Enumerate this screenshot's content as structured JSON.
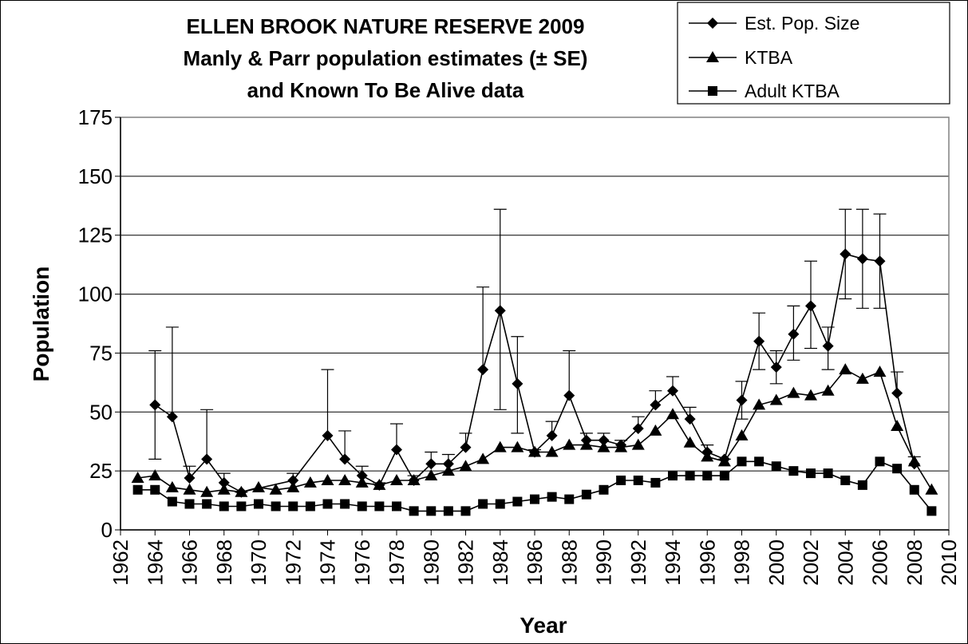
{
  "chart_data": {
    "type": "line",
    "title_lines": [
      "ELLEN BROOK NATURE RESERVE 2009",
      "Manly & Parr population estimates (± SE)",
      "and Known To Be Alive data"
    ],
    "xlabel": "Year",
    "ylabel": "Population",
    "xlim": [
      1962,
      2010
    ],
    "ylim": [
      0,
      175
    ],
    "x_ticks": [
      "1962",
      "1964",
      "1966",
      "1968",
      "1970",
      "1972",
      "1974",
      "1976",
      "1978",
      "1980",
      "1982",
      "1984",
      "1986",
      "1988",
      "1990",
      "1992",
      "1994",
      "1996",
      "1998",
      "2000",
      "2002",
      "2004",
      "2006",
      "2008",
      "2010"
    ],
    "y_ticks": [
      "0",
      "25",
      "50",
      "75",
      "100",
      "125",
      "150",
      "175"
    ],
    "grid": "horizontal",
    "legend_position": "top-right",
    "series": [
      {
        "name": "Est. Pop. Size",
        "marker": "diamond",
        "x": [
          1964,
          1965,
          1966,
          1967,
          1968,
          1969,
          1972,
          1974,
          1975,
          1976,
          1977,
          1978,
          1979,
          1980,
          1981,
          1982,
          1983,
          1984,
          1985,
          1986,
          1987,
          1988,
          1989,
          1990,
          1991,
          1992,
          1993,
          1994,
          1995,
          1996,
          1997,
          1998,
          1999,
          2000,
          2001,
          2002,
          2003,
          2004,
          2005,
          2006,
          2007,
          2008
        ],
        "y": [
          53,
          48,
          22,
          30,
          20,
          16,
          21,
          40,
          30,
          23,
          19,
          34,
          21,
          28,
          28,
          35,
          68,
          93,
          62,
          33,
          40,
          57,
          38,
          38,
          36,
          43,
          53,
          59,
          47,
          33,
          30,
          55,
          80,
          69,
          83,
          95,
          78,
          117,
          115,
          114,
          58,
          28
        ],
        "error_upper": [
          76,
          86,
          27,
          51,
          24,
          16,
          24,
          68,
          42,
          27,
          20,
          45,
          23,
          33,
          32,
          41,
          103,
          136,
          82,
          34,
          46,
          76,
          41,
          41,
          38,
          48,
          59,
          65,
          52,
          36,
          30,
          63,
          92,
          76,
          95,
          114,
          86,
          136,
          136,
          134,
          67,
          31
        ],
        "error_lower": [
          30,
          null,
          null,
          null,
          null,
          null,
          null,
          null,
          null,
          null,
          null,
          null,
          null,
          null,
          null,
          null,
          null,
          51,
          41,
          null,
          null,
          null,
          null,
          null,
          null,
          null,
          null,
          null,
          null,
          null,
          null,
          47,
          68,
          62,
          72,
          77,
          68,
          98,
          94,
          94,
          null,
          null
        ]
      },
      {
        "name": "KTBA",
        "marker": "triangle",
        "x": [
          1963,
          1964,
          1965,
          1966,
          1967,
          1968,
          1969,
          1970,
          1971,
          1972,
          1973,
          1974,
          1975,
          1976,
          1977,
          1978,
          1979,
          1980,
          1981,
          1982,
          1983,
          1984,
          1985,
          1986,
          1987,
          1988,
          1989,
          1990,
          1991,
          1992,
          1993,
          1994,
          1995,
          1996,
          1997,
          1998,
          1999,
          2000,
          2001,
          2002,
          2003,
          2004,
          2005,
          2006,
          2007,
          2008,
          2009
        ],
        "y": [
          22,
          23,
          18,
          17,
          16,
          17,
          16,
          18,
          17,
          18,
          20,
          21,
          21,
          20,
          19,
          21,
          21,
          23,
          25,
          27,
          30,
          35,
          35,
          33,
          33,
          36,
          36,
          35,
          35,
          36,
          42,
          49,
          37,
          31,
          29,
          40,
          53,
          55,
          58,
          57,
          59,
          68,
          64,
          67,
          44,
          29,
          17
        ]
      },
      {
        "name": "Adult KTBA",
        "marker": "square",
        "x": [
          1963,
          1964,
          1965,
          1966,
          1967,
          1968,
          1969,
          1970,
          1971,
          1972,
          1973,
          1974,
          1975,
          1976,
          1977,
          1978,
          1979,
          1980,
          1981,
          1982,
          1983,
          1984,
          1985,
          1986,
          1987,
          1988,
          1989,
          1990,
          1991,
          1992,
          1993,
          1994,
          1995,
          1996,
          1997,
          1998,
          1999,
          2000,
          2001,
          2002,
          2003,
          2004,
          2005,
          2006,
          2007,
          2008,
          2009
        ],
        "y": [
          17,
          17,
          12,
          11,
          11,
          10,
          10,
          11,
          10,
          10,
          10,
          11,
          11,
          10,
          10,
          10,
          8,
          8,
          8,
          8,
          11,
          11,
          12,
          13,
          14,
          13,
          15,
          17,
          21,
          21,
          20,
          23,
          23,
          23,
          23,
          29,
          29,
          27,
          25,
          24,
          24,
          21,
          19,
          29,
          26,
          17,
          8
        ]
      }
    ]
  }
}
